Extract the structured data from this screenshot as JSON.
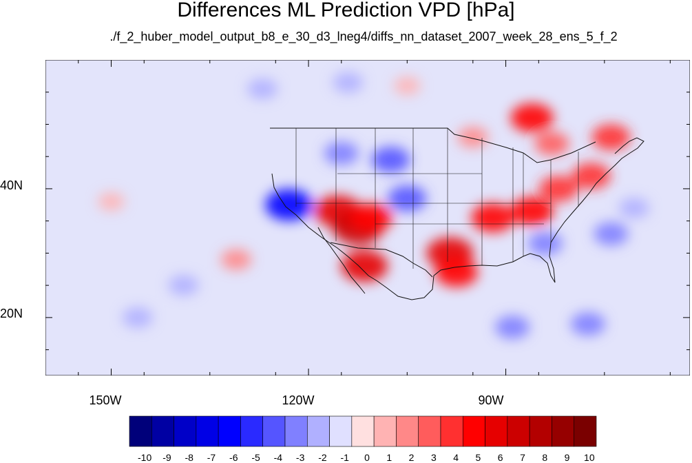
{
  "title": "Differences ML Prediction VPD [hPa]",
  "subtitle": "./f_2_huber_model_output_b8_e_30_d3_lneg4/diffs_nn_dataset_2007_week_28_ens_5_f_2",
  "axes": {
    "y_tick_labels": [
      "40N",
      "20N"
    ],
    "x_tick_labels": [
      "150W",
      "120W",
      "90W"
    ]
  },
  "colorbar": {
    "labels": [
      "-10",
      "-9",
      "-8",
      "-7",
      "-6",
      "-5",
      "-4",
      "-3",
      "-2",
      "-1",
      "0",
      "1",
      "2",
      "3",
      "4",
      "5",
      "6",
      "7",
      "8",
      "9",
      "10"
    ],
    "colors": [
      "#00007a",
      "#0000a3",
      "#0000c8",
      "#0000e6",
      "#0000ff",
      "#2a2aff",
      "#5555ff",
      "#8080ff",
      "#b0b0ff",
      "#e0e0ff",
      "#ffe0e0",
      "#ffb3b3",
      "#ff8888",
      "#ff5c5c",
      "#ff3030",
      "#ff0000",
      "#e60000",
      "#cc0000",
      "#b30000",
      "#960000",
      "#7a0000"
    ]
  },
  "chart_data": {
    "type": "heatmap",
    "title": "Differences ML Prediction VPD [hPa]",
    "subtitle": "./f_2_huber_model_output_b8_e_30_d3_lneg4/diffs_nn_dataset_2007_week_28_ens_5_f_2",
    "projection": "cylindrical equidistant",
    "lon_range": [
      -160,
      -62
    ],
    "lat_range": [
      11,
      60
    ],
    "x_ticks": [
      -150,
      -120,
      -90
    ],
    "x_tick_labels": [
      "150W",
      "120W",
      "90W"
    ],
    "y_ticks": [
      20,
      40
    ],
    "y_tick_labels": [
      "20N",
      "40N"
    ],
    "colorbar_levels": [
      -10,
      -9,
      -8,
      -7,
      -6,
      -5,
      -4,
      -3,
      -2,
      -1,
      0,
      1,
      2,
      3,
      4,
      5,
      6,
      7,
      8,
      9,
      10
    ],
    "regions": [
      {
        "lon": -115.5,
        "lat": 36.5,
        "value": 6
      },
      {
        "lon": -112.5,
        "lat": 34.0,
        "value": 7
      },
      {
        "lon": -110.5,
        "lat": 35.5,
        "value": 5
      },
      {
        "lon": -111.5,
        "lat": 28.0,
        "value": 6
      },
      {
        "lon": -98.5,
        "lat": 30.0,
        "value": 6
      },
      {
        "lon": -97.5,
        "lat": 27.0,
        "value": 5
      },
      {
        "lon": -92.0,
        "lat": 35.5,
        "value": 5
      },
      {
        "lon": -86.0,
        "lat": 36.5,
        "value": 5
      },
      {
        "lon": -82.0,
        "lat": 40.0,
        "value": 4
      },
      {
        "lon": -77.0,
        "lat": 42.0,
        "value": 4
      },
      {
        "lon": -86.0,
        "lat": 51.0,
        "value": 5
      },
      {
        "lon": -74.0,
        "lat": 48.0,
        "value": 4
      },
      {
        "lon": -83.0,
        "lat": 47.0,
        "value": 3
      },
      {
        "lon": -95.0,
        "lat": 48.0,
        "value": 2
      },
      {
        "lon": -131.0,
        "lat": 29.0,
        "value": 2
      },
      {
        "lon": -123.0,
        "lat": 37.5,
        "value": -6
      },
      {
        "lon": -105.0,
        "lat": 38.5,
        "value": -4
      },
      {
        "lon": -107.5,
        "lat": 44.5,
        "value": -4
      },
      {
        "lon": -115.0,
        "lat": 45.5,
        "value": -3
      },
      {
        "lon": -84.0,
        "lat": 31.5,
        "value": -3
      },
      {
        "lon": -74.0,
        "lat": 33.0,
        "value": -3
      },
      {
        "lon": -70.5,
        "lat": 37.0,
        "value": -2
      },
      {
        "lon": -139.0,
        "lat": 25.0,
        "value": -2
      },
      {
        "lon": -146.0,
        "lat": 20.0,
        "value": -2
      },
      {
        "lon": -127.0,
        "lat": 55.5,
        "value": -2
      },
      {
        "lon": -114.0,
        "lat": 56.5,
        "value": -2
      },
      {
        "lon": -89.0,
        "lat": 18.5,
        "value": -3
      },
      {
        "lon": -77.5,
        "lat": 19.0,
        "value": -3
      },
      {
        "lon": -105.0,
        "lat": 56.0,
        "value": 1
      },
      {
        "lon": -150.0,
        "lat": 38.0,
        "value": 1
      }
    ]
  }
}
